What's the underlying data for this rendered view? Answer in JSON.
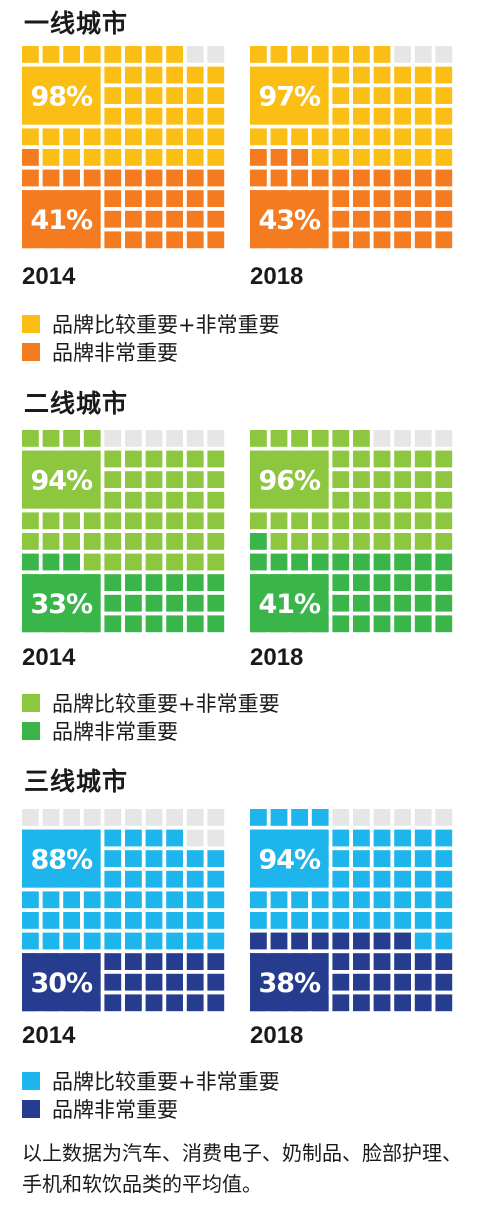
{
  "chart_data": [
    {
      "type": "waffle",
      "title": "一线城市",
      "legend": [
        "品牌比较重要+非常重要",
        "品牌非常重要"
      ],
      "colors": {
        "light": "#FBBE14",
        "dark": "#F47B20",
        "empty": "#E6E6E6"
      },
      "panels": [
        {
          "year": "2014",
          "total": 98,
          "very": 41,
          "total_label": "98%",
          "very_label": "41%"
        },
        {
          "year": "2018",
          "total": 97,
          "very": 43,
          "total_label": "97%",
          "very_label": "43%"
        }
      ]
    },
    {
      "type": "waffle",
      "title": "二线城市",
      "legend": [
        "品牌比较重要+非常重要",
        "品牌非常重要"
      ],
      "colors": {
        "light": "#8DC63F",
        "dark": "#39B54A",
        "empty": "#E6E6E6"
      },
      "panels": [
        {
          "year": "2014",
          "total": 94,
          "very": 33,
          "total_label": "94%",
          "very_label": "33%"
        },
        {
          "year": "2018",
          "total": 96,
          "very": 41,
          "total_label": "96%",
          "very_label": "41%"
        }
      ]
    },
    {
      "type": "waffle",
      "title": "三线城市",
      "legend": [
        "品牌比较重要+非常重要",
        "品牌非常重要"
      ],
      "colors": {
        "light": "#1EB4EC",
        "dark": "#253C8F",
        "empty": "#E6E6E6"
      },
      "panels": [
        {
          "year": "2014",
          "total": 88,
          "very": 30,
          "total_label": "88%",
          "very_label": "30%"
        },
        {
          "year": "2018",
          "total": 94,
          "very": 38,
          "total_label": "94%",
          "very_label": "38%"
        }
      ]
    }
  ],
  "footnote": "以上数据为汽车、消费电子、奶制品、脸部护理、手机和软饮品类的平均值。"
}
